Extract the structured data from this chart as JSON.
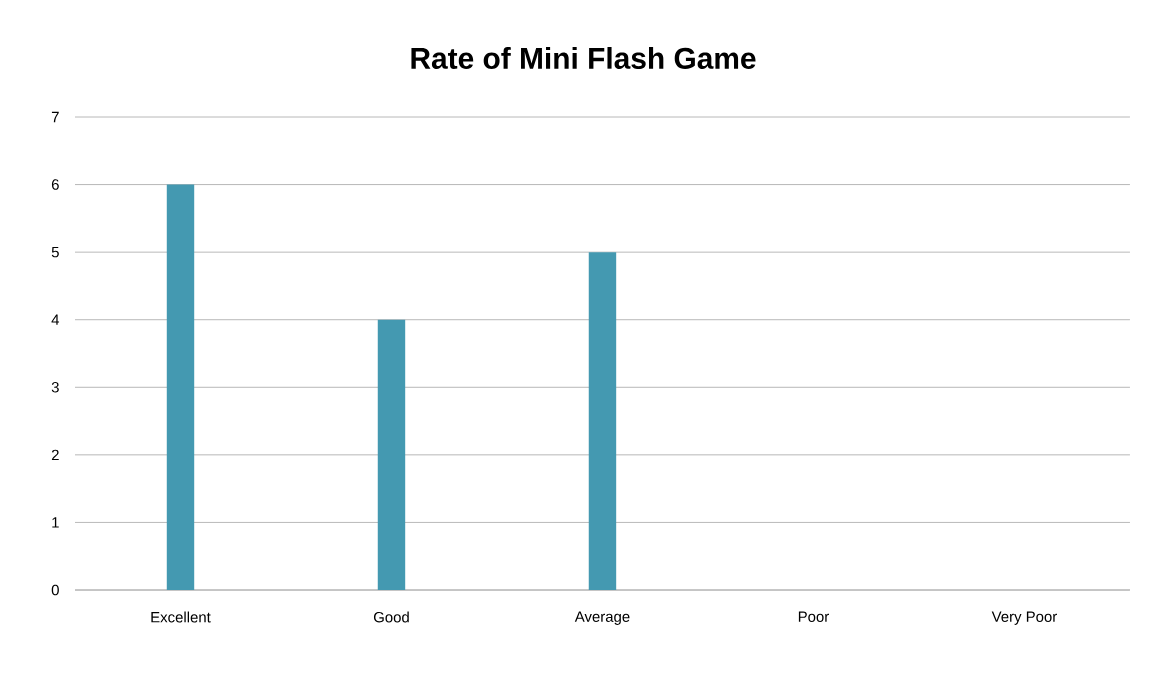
{
  "chart_data": {
    "type": "bar",
    "title": "Rate of Mini Flash Game",
    "categories": [
      "Excellent",
      "Good",
      "Average",
      "Poor",
      "Very Poor"
    ],
    "values": [
      6,
      4,
      5,
      0,
      0
    ],
    "color": "#4499b1",
    "ylim": [
      0,
      7
    ],
    "yticks": [
      0,
      1,
      2,
      3,
      4,
      5,
      6,
      7
    ],
    "grid": "y"
  }
}
